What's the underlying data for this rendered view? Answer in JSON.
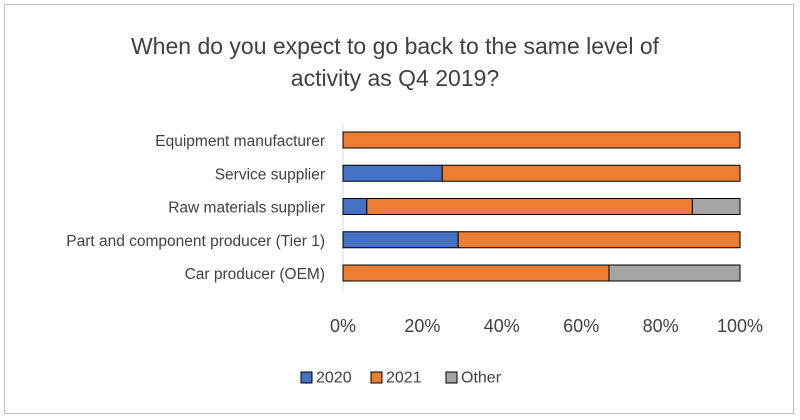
{
  "chart_data": {
    "type": "bar",
    "orientation": "horizontal",
    "stacked": true,
    "percent_stacked": true,
    "title_lines": [
      "When do you expect to go back to the same level of",
      "activity as Q4 2019?"
    ],
    "categories": [
      "Equipment manufacturer",
      "Service supplier",
      "Raw materials supplier",
      "Part and component producer (Tier 1)",
      "Car producer (OEM)"
    ],
    "series": [
      {
        "name": "2020",
        "color": "#4472c4",
        "values": [
          0,
          25,
          6,
          29,
          0
        ]
      },
      {
        "name": "2021",
        "color": "#ed7d31",
        "values": [
          100,
          75,
          82,
          71,
          67
        ]
      },
      {
        "name": "Other",
        "color": "#a5a5a5",
        "values": [
          0,
          0,
          12,
          0,
          33
        ]
      }
    ],
    "xlim": [
      0,
      100
    ],
    "x_ticks": [
      "0%",
      "20%",
      "40%",
      "60%",
      "80%",
      "100%"
    ],
    "grid": false,
    "legend_position": "bottom"
  }
}
